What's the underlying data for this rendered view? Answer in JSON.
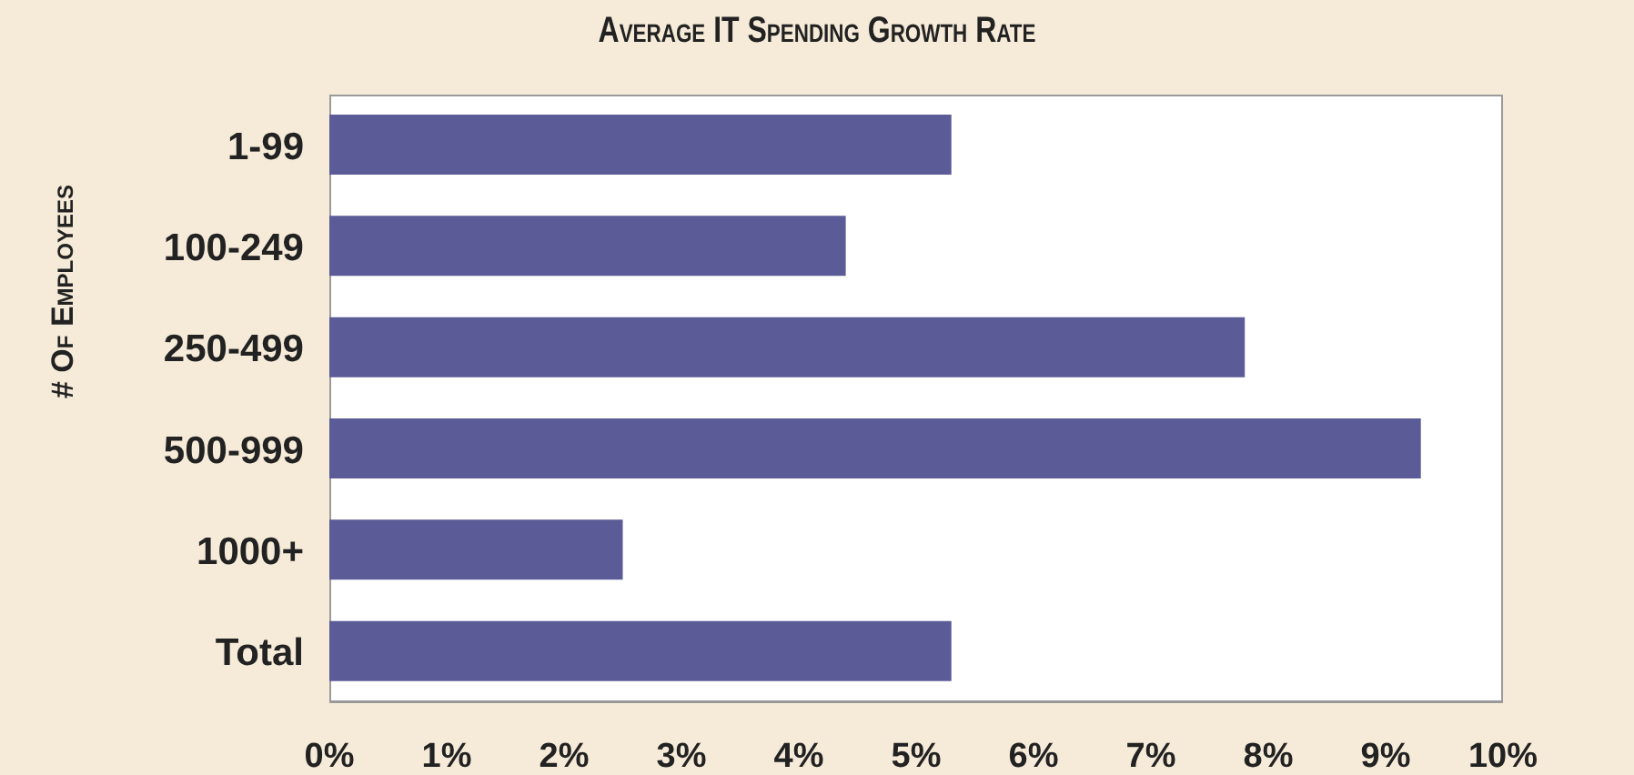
{
  "chart_data": {
    "type": "bar",
    "orientation": "horizontal",
    "title": "Average IT Spending Growth Rate",
    "ylabel": "# Of Employees",
    "categories": [
      "1-99",
      "100-249",
      "250-499",
      "500-999",
      "1000+",
      "Total"
    ],
    "values": [
      5.3,
      4.4,
      7.8,
      9.3,
      2.5,
      5.3
    ],
    "color": "#5b5b97",
    "xlim": [
      0,
      10
    ],
    "xticks": [
      {
        "value": 0,
        "label": "0%"
      },
      {
        "value": 1,
        "label": "1%"
      },
      {
        "value": 2,
        "label": "2%"
      },
      {
        "value": 3,
        "label": "3%"
      },
      {
        "value": 4,
        "label": "4%"
      },
      {
        "value": 5,
        "label": "5%"
      },
      {
        "value": 6,
        "label": "6%"
      },
      {
        "value": 7,
        "label": "7%"
      },
      {
        "value": 8,
        "label": "8%"
      },
      {
        "value": 9,
        "label": "9%"
      },
      {
        "value": 10,
        "label": "10%"
      }
    ],
    "grid": false,
    "legend": false
  }
}
